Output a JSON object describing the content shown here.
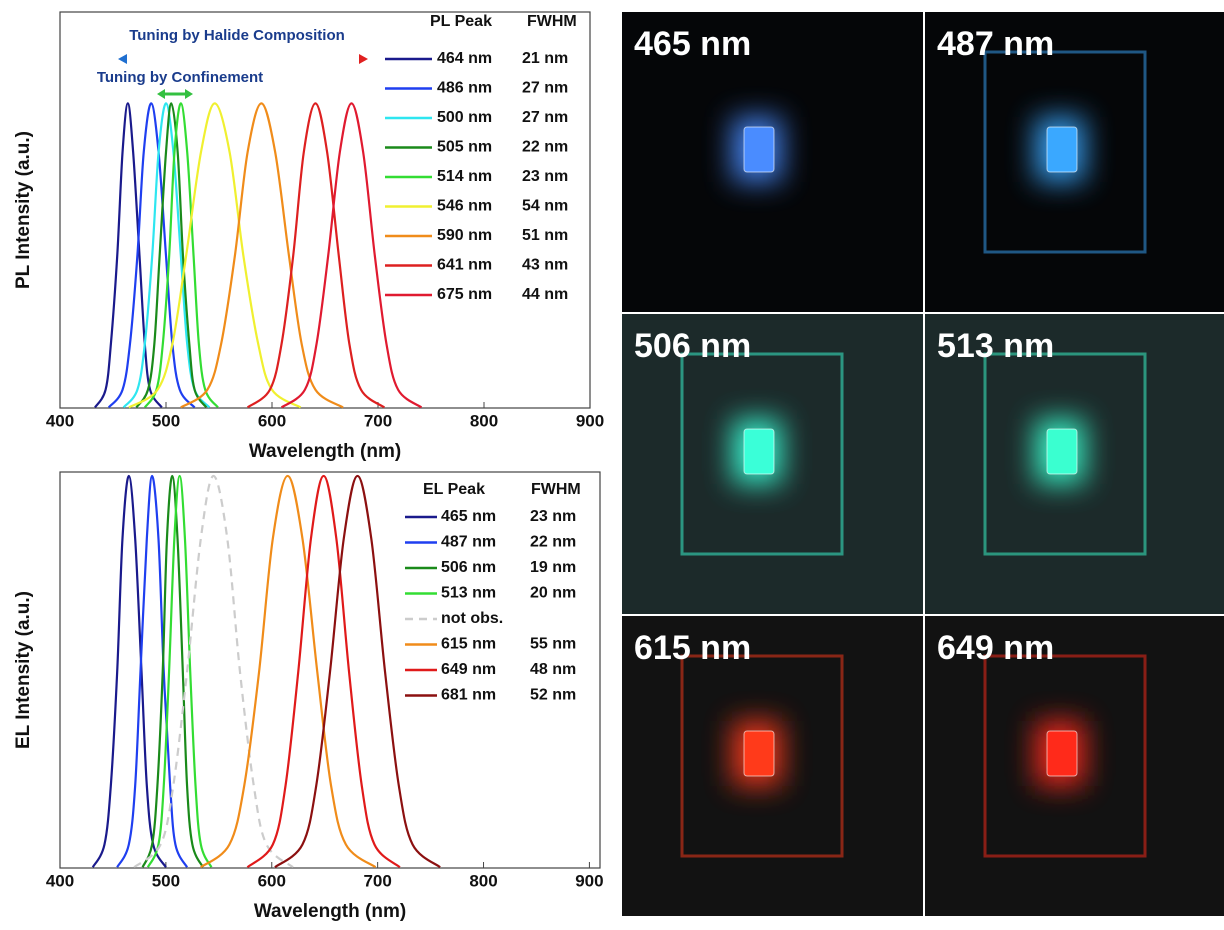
{
  "chart_data": [
    {
      "type": "line",
      "xlabel": "Wavelength (nm)",
      "ylabel": "PL Intensity (a.u.)",
      "xlim": [
        400,
        900
      ],
      "xticks": [
        400,
        500,
        600,
        700,
        800,
        900
      ],
      "ylim": [
        0,
        1.3
      ],
      "legend_header": [
        "PL Peak",
        "FWHM"
      ],
      "annotations": [
        "Tuning by Halide Composition",
        "Tuning by Confinement"
      ],
      "series": [
        {
          "name": "464 nm",
          "fwhm": "21 nm",
          "color": "#1a1a8c",
          "x": [
            433,
            443,
            448,
            454,
            459,
            464,
            469,
            475,
            480,
            485,
            496
          ],
          "values": [
            0.002,
            0.06,
            0.21,
            0.5,
            0.84,
            1,
            0.84,
            0.5,
            0.21,
            0.06,
            0.002
          ]
        },
        {
          "name": "486 nm",
          "fwhm": "27 nm",
          "color": "#1f3ff0",
          "x": [
            446,
            459,
            466,
            473,
            479,
            486,
            493,
            500,
            506,
            513,
            527
          ],
          "values": [
            0.002,
            0.06,
            0.21,
            0.5,
            0.84,
            1,
            0.84,
            0.5,
            0.21,
            0.06,
            0.002
          ]
        },
        {
          "name": "500 nm",
          "fwhm": "27 nm",
          "color": "#2ee6f0",
          "x": [
            460,
            473,
            480,
            487,
            493,
            500,
            507,
            514,
            520,
            527,
            541
          ],
          "values": [
            0.002,
            0.06,
            0.21,
            0.5,
            0.84,
            1,
            0.84,
            0.5,
            0.21,
            0.06,
            0.002
          ]
        },
        {
          "name": "505 nm",
          "fwhm": "22 nm",
          "color": "#1a8a1a",
          "x": [
            472,
            483,
            489,
            494,
            500,
            505,
            511,
            516,
            522,
            527,
            538
          ],
          "values": [
            0.002,
            0.06,
            0.21,
            0.5,
            0.84,
            1,
            0.84,
            0.5,
            0.21,
            0.06,
            0.002
          ]
        },
        {
          "name": "514 nm",
          "fwhm": "23 nm",
          "color": "#33dd33",
          "x": [
            480,
            491,
            497,
            503,
            508,
            514,
            520,
            526,
            531,
            537,
            549
          ],
          "values": [
            0.002,
            0.06,
            0.21,
            0.5,
            0.84,
            1,
            0.84,
            0.5,
            0.21,
            0.06,
            0.002
          ]
        },
        {
          "name": "546 nm",
          "fwhm": "54 nm",
          "color": "#f0f030",
          "x": [
            465,
            492,
            506,
            519,
            533,
            546,
            560,
            573,
            587,
            600,
            627
          ],
          "values": [
            0.002,
            0.06,
            0.21,
            0.5,
            0.84,
            1,
            0.84,
            0.5,
            0.21,
            0.06,
            0.002
          ]
        },
        {
          "name": "590 nm",
          "fwhm": "51 nm",
          "color": "#f08c1a",
          "x": [
            514,
            539,
            552,
            565,
            577,
            590,
            603,
            616,
            628,
            641,
            667
          ],
          "values": [
            0.002,
            0.06,
            0.21,
            0.5,
            0.84,
            1,
            0.84,
            0.5,
            0.21,
            0.06,
            0.002
          ]
        },
        {
          "name": "641 nm",
          "fwhm": "43 nm",
          "color": "#dd2020",
          "x": [
            577,
            598,
            609,
            620,
            630,
            641,
            652,
            663,
            673,
            684,
            706
          ],
          "values": [
            0.002,
            0.06,
            0.21,
            0.5,
            0.84,
            1,
            0.84,
            0.5,
            0.21,
            0.06,
            0.002
          ]
        },
        {
          "name": "675 nm",
          "fwhm": "44 nm",
          "color": "#e01a30",
          "x": [
            609,
            631,
            642,
            653,
            664,
            675,
            686,
            697,
            708,
            719,
            741
          ],
          "values": [
            0.002,
            0.06,
            0.21,
            0.5,
            0.84,
            1,
            0.84,
            0.5,
            0.21,
            0.06,
            0.002
          ]
        }
      ]
    },
    {
      "type": "line",
      "xlabel": "Wavelength (nm)",
      "ylabel": "EL Intensity (a.u.)",
      "xlim": [
        400,
        910
      ],
      "xticks": [
        400,
        500,
        600,
        700,
        800,
        900
      ],
      "ylim": [
        0,
        1.01
      ],
      "legend_header": [
        "EL Peak",
        "FWHM"
      ],
      "series": [
        {
          "name": "465 nm",
          "fwhm": "23 nm",
          "color": "#1a1a8c",
          "x": [
            431,
            442,
            448,
            454,
            459,
            465,
            471,
            477,
            482,
            488,
            500
          ],
          "values": [
            0.002,
            0.06,
            0.21,
            0.5,
            0.84,
            1,
            0.84,
            0.5,
            0.21,
            0.06,
            0.002
          ]
        },
        {
          "name": "487 nm",
          "fwhm": "22 nm",
          "color": "#1f3ff0",
          "x": [
            454,
            465,
            471,
            476,
            482,
            487,
            493,
            498,
            504,
            509,
            520
          ],
          "values": [
            0.002,
            0.06,
            0.21,
            0.5,
            0.84,
            1,
            0.84,
            0.5,
            0.21,
            0.06,
            0.002
          ]
        },
        {
          "name": "506 nm",
          "fwhm": "19 nm",
          "color": "#1a8a1a",
          "x": [
            478,
            487,
            492,
            497,
            501,
            506,
            511,
            516,
            520,
            525,
            535
          ],
          "values": [
            0.002,
            0.06,
            0.21,
            0.5,
            0.84,
            1,
            0.84,
            0.5,
            0.21,
            0.06,
            0.002
          ]
        },
        {
          "name": "513 nm",
          "fwhm": "20 nm",
          "color": "#33dd33",
          "x": [
            483,
            493,
            498,
            503,
            508,
            513,
            518,
            523,
            528,
            533,
            543
          ],
          "values": [
            0.002,
            0.06,
            0.21,
            0.5,
            0.84,
            1,
            0.84,
            0.5,
            0.21,
            0.06,
            0.002
          ]
        },
        {
          "name": "not obs.",
          "color": "#cccccc",
          "dashed": true,
          "x": [
            470,
            495,
            507,
            520,
            533,
            545,
            558,
            570,
            583,
            595,
            620
          ],
          "values": [
            0.002,
            0.06,
            0.21,
            0.5,
            0.84,
            1,
            0.84,
            0.5,
            0.21,
            0.06,
            0.002
          ]
        },
        {
          "name": "615 nm",
          "fwhm": "55 nm",
          "color": "#f08c1a",
          "x": [
            533,
            560,
            574,
            588,
            601,
            615,
            629,
            643,
            656,
            670,
            698
          ],
          "values": [
            0.002,
            0.06,
            0.21,
            0.5,
            0.84,
            1,
            0.84,
            0.5,
            0.21,
            0.06,
            0.002
          ]
        },
        {
          "name": "649 nm",
          "fwhm": "48 nm",
          "color": "#e01a1a",
          "x": [
            577,
            601,
            613,
            625,
            637,
            649,
            661,
            673,
            685,
            697,
            721
          ],
          "values": [
            0.002,
            0.06,
            0.21,
            0.5,
            0.84,
            1,
            0.84,
            0.5,
            0.21,
            0.06,
            0.002
          ]
        },
        {
          "name": "681 nm",
          "fwhm": "52 nm",
          "color": "#8c1010",
          "x": [
            603,
            629,
            642,
            655,
            668,
            681,
            694,
            707,
            720,
            733,
            759
          ],
          "values": [
            0.002,
            0.06,
            0.21,
            0.5,
            0.84,
            1,
            0.84,
            0.5,
            0.21,
            0.06,
            0.002
          ]
        }
      ]
    }
  ],
  "photos": [
    {
      "label": "465 nm",
      "color": "#4a8cff"
    },
    {
      "label": "487 nm",
      "color": "#3aa8ff"
    },
    {
      "label": "506 nm",
      "color": "#3affd8"
    },
    {
      "label": "513 nm",
      "color": "#3affd0"
    },
    {
      "label": "615 nm",
      "color": "#ff3a1a"
    },
    {
      "label": "649 nm",
      "color": "#ff2a1a"
    }
  ]
}
